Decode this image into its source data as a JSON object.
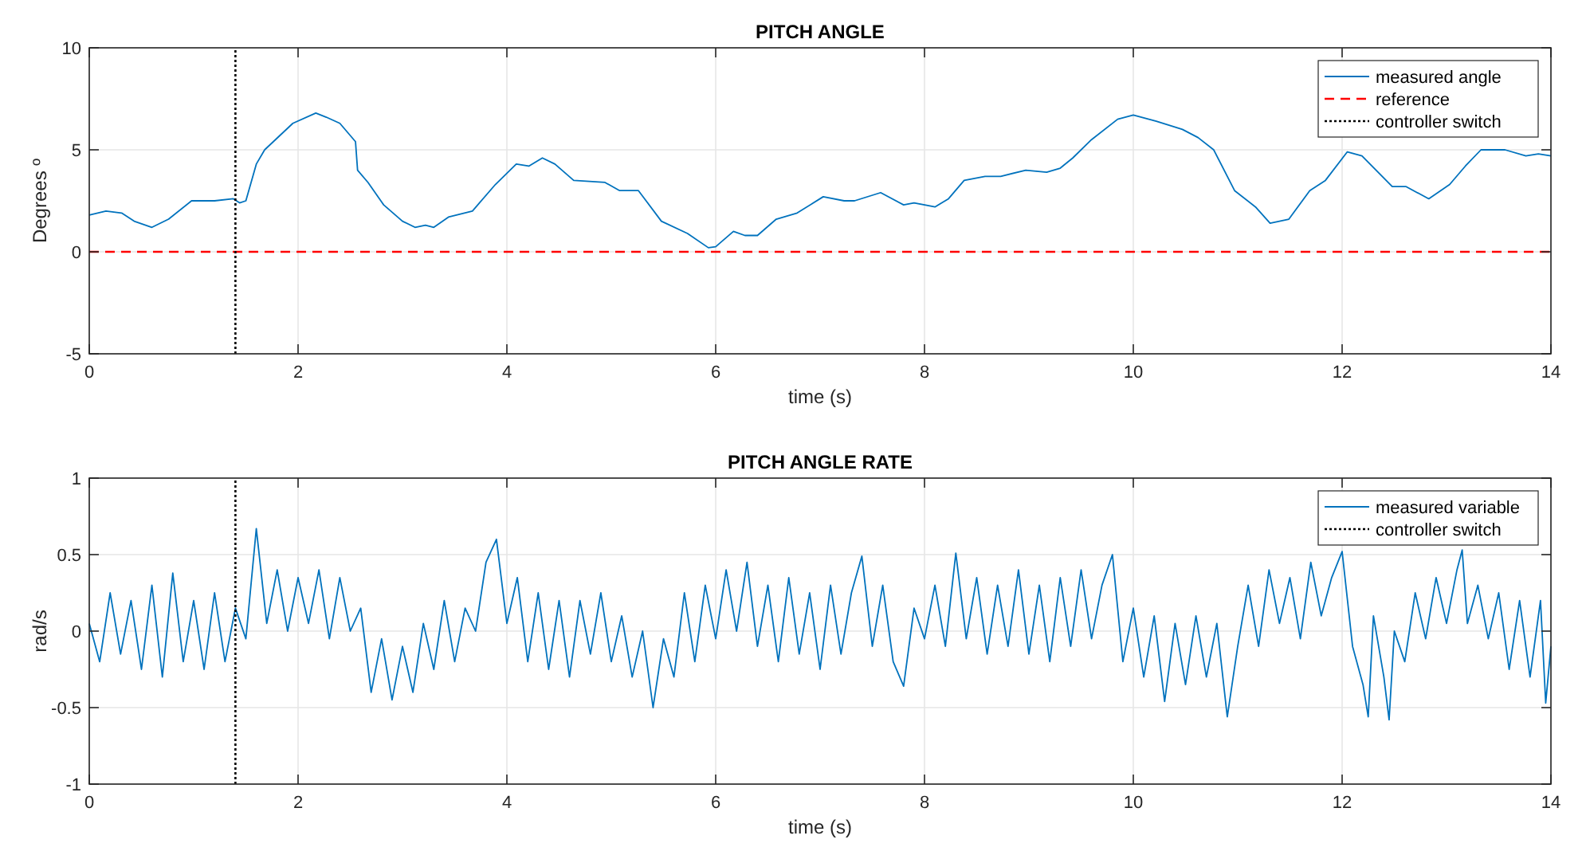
{
  "chart_data": [
    {
      "type": "line",
      "title": "PITCH ANGLE",
      "xlabel": "time (s)",
      "ylabel": "Degrees º",
      "xlim": [
        0,
        14
      ],
      "ylim": [
        -5,
        10
      ],
      "xticks": [
        0,
        2,
        4,
        6,
        8,
        10,
        12,
        14
      ],
      "yticks": [
        -5,
        0,
        5,
        10
      ],
      "grid": true,
      "legend": "top right",
      "series": [
        {
          "name": "measured angle",
          "color": "#0072bd",
          "line_style": "solid",
          "x": [
            0,
            0.16,
            0.31,
            0.43,
            0.6,
            0.76,
            0.98,
            1.2,
            1.38,
            1.44,
            1.5,
            1.6,
            1.68,
            1.95,
            2.17,
            2.27,
            2.4,
            2.55,
            2.57,
            2.67,
            2.82,
            3.0,
            3.12,
            3.22,
            3.3,
            3.44,
            3.67,
            3.89,
            4.09,
            4.21,
            4.34,
            4.46,
            4.64,
            4.94,
            5.08,
            5.26,
            5.48,
            5.73,
            5.93,
            6.0,
            6.17,
            6.28,
            6.4,
            6.58,
            6.78,
            7.03,
            7.23,
            7.33,
            7.58,
            7.8,
            7.9,
            8.1,
            8.23,
            8.38,
            8.58,
            8.73,
            8.97,
            9.17,
            9.3,
            9.42,
            9.6,
            9.85,
            10.0,
            10.22,
            10.47,
            10.62,
            10.77,
            10.97,
            11.17,
            11.31,
            11.49,
            11.69,
            11.84,
            12.05,
            12.19,
            12.48,
            12.61,
            12.83,
            13.03,
            13.18,
            13.33,
            13.56,
            13.76,
            13.88,
            14.0
          ],
          "values": [
            1.8,
            2.0,
            1.9,
            1.5,
            1.2,
            1.6,
            2.5,
            2.5,
            2.6,
            2.4,
            2.5,
            4.3,
            5.0,
            6.3,
            6.8,
            6.6,
            6.3,
            5.4,
            4.0,
            3.4,
            2.3,
            1.5,
            1.2,
            1.3,
            1.2,
            1.7,
            2.0,
            3.3,
            4.3,
            4.2,
            4.6,
            4.3,
            3.5,
            3.4,
            3.0,
            3.0,
            1.5,
            0.9,
            0.2,
            0.25,
            1.0,
            0.8,
            0.8,
            1.6,
            1.9,
            2.7,
            2.5,
            2.5,
            2.9,
            2.3,
            2.4,
            2.2,
            2.6,
            3.5,
            3.7,
            3.7,
            4.0,
            3.9,
            4.1,
            4.6,
            5.5,
            6.5,
            6.7,
            6.4,
            6.0,
            5.6,
            5.0,
            3.0,
            2.2,
            1.4,
            1.6,
            3.0,
            3.5,
            4.9,
            4.7,
            3.2,
            3.2,
            2.6,
            3.3,
            4.2,
            5.0,
            5.0,
            4.7,
            4.8,
            4.7
          ]
        },
        {
          "name": "reference",
          "color": "#ff0000",
          "line_style": "dashed",
          "x": [
            0,
            14
          ],
          "values": [
            0,
            0
          ]
        },
        {
          "name": "controller switch",
          "color": "#000000",
          "line_style": "dotted",
          "x": [
            1.4,
            1.4
          ],
          "values": [
            -5,
            10
          ]
        }
      ]
    },
    {
      "type": "line",
      "title": "PITCH ANGLE RATE",
      "xlabel": "time (s)",
      "ylabel": "rad/s",
      "xlim": [
        0,
        14
      ],
      "ylim": [
        -1,
        1
      ],
      "xticks": [
        0,
        2,
        4,
        6,
        8,
        10,
        12,
        14
      ],
      "yticks": [
        -1,
        -0.5,
        0,
        0.5,
        1
      ],
      "grid": true,
      "legend": "top right",
      "series": [
        {
          "name": "measured variable",
          "color": "#0072bd",
          "line_style": "solid",
          "x": [
            0,
            0.1,
            0.2,
            0.3,
            0.4,
            0.5,
            0.6,
            0.7,
            0.8,
            0.9,
            1.0,
            1.1,
            1.2,
            1.3,
            1.4,
            1.5,
            1.6,
            1.7,
            1.8,
            1.9,
            2.0,
            2.1,
            2.2,
            2.3,
            2.4,
            2.5,
            2.6,
            2.7,
            2.8,
            2.9,
            3.0,
            3.1,
            3.2,
            3.3,
            3.4,
            3.5,
            3.6,
            3.7,
            3.8,
            3.9,
            4.0,
            4.1,
            4.2,
            4.3,
            4.4,
            4.5,
            4.6,
            4.7,
            4.8,
            4.9,
            5.0,
            5.1,
            5.2,
            5.3,
            5.4,
            5.5,
            5.6,
            5.7,
            5.8,
            5.9,
            6.0,
            6.1,
            6.2,
            6.3,
            6.4,
            6.5,
            6.6,
            6.7,
            6.8,
            6.9,
            7.0,
            7.1,
            7.2,
            7.3,
            7.4,
            7.5,
            7.6,
            7.7,
            7.8,
            7.9,
            8.0,
            8.1,
            8.2,
            8.3,
            8.4,
            8.5,
            8.6,
            8.7,
            8.8,
            8.9,
            9.0,
            9.1,
            9.2,
            9.3,
            9.4,
            9.5,
            9.6,
            9.7,
            9.8,
            9.9,
            10.0,
            10.1,
            10.2,
            10.3,
            10.4,
            10.5,
            10.6,
            10.7,
            10.8,
            10.9,
            11.0,
            11.1,
            11.2,
            11.3,
            11.4,
            11.5,
            11.6,
            11.7,
            11.8,
            11.9,
            12.0,
            12.1,
            12.2,
            12.25,
            12.3,
            12.4,
            12.45,
            12.5,
            12.6,
            12.7,
            12.8,
            12.9,
            13.0,
            13.1,
            13.15,
            13.2,
            13.3,
            13.4,
            13.5,
            13.6,
            13.7,
            13.8,
            13.9,
            13.95,
            14.0
          ],
          "values": [
            0.05,
            -0.2,
            0.25,
            -0.15,
            0.2,
            -0.25,
            0.3,
            -0.3,
            0.38,
            -0.2,
            0.2,
            -0.25,
            0.25,
            -0.2,
            0.15,
            -0.05,
            0.67,
            0.05,
            0.4,
            0.0,
            0.35,
            0.05,
            0.4,
            -0.05,
            0.35,
            0.0,
            0.15,
            -0.4,
            -0.05,
            -0.45,
            -0.1,
            -0.4,
            0.05,
            -0.25,
            0.2,
            -0.2,
            0.15,
            0.0,
            0.45,
            0.6,
            0.05,
            0.35,
            -0.2,
            0.25,
            -0.25,
            0.2,
            -0.3,
            0.2,
            -0.15,
            0.25,
            -0.2,
            0.1,
            -0.3,
            0.0,
            -0.5,
            -0.05,
            -0.3,
            0.25,
            -0.2,
            0.3,
            -0.05,
            0.4,
            0.0,
            0.45,
            -0.1,
            0.3,
            -0.2,
            0.35,
            -0.15,
            0.25,
            -0.25,
            0.3,
            -0.15,
            0.25,
            0.49,
            -0.1,
            0.3,
            -0.2,
            -0.36,
            0.15,
            -0.05,
            0.3,
            -0.1,
            0.51,
            -0.05,
            0.35,
            -0.15,
            0.3,
            -0.1,
            0.4,
            -0.15,
            0.3,
            -0.2,
            0.35,
            -0.1,
            0.4,
            -0.05,
            0.3,
            0.5,
            -0.2,
            0.15,
            -0.3,
            0.1,
            -0.46,
            0.05,
            -0.35,
            0.1,
            -0.3,
            0.05,
            -0.56,
            -0.1,
            0.3,
            -0.1,
            0.4,
            0.05,
            0.35,
            -0.05,
            0.45,
            0.1,
            0.35,
            0.52,
            -0.1,
            -0.35,
            -0.56,
            0.1,
            -0.3,
            -0.58,
            0.0,
            -0.2,
            0.25,
            -0.05,
            0.35,
            0.05,
            0.4,
            0.53,
            0.05,
            0.3,
            -0.05,
            0.25,
            -0.25,
            0.2,
            -0.3,
            0.2,
            -0.47,
            -0.1
          ]
        },
        {
          "name": "controller switch",
          "color": "#000000",
          "line_style": "dotted",
          "x": [
            1.4,
            1.4
          ],
          "values": [
            -1,
            1
          ]
        }
      ]
    }
  ]
}
